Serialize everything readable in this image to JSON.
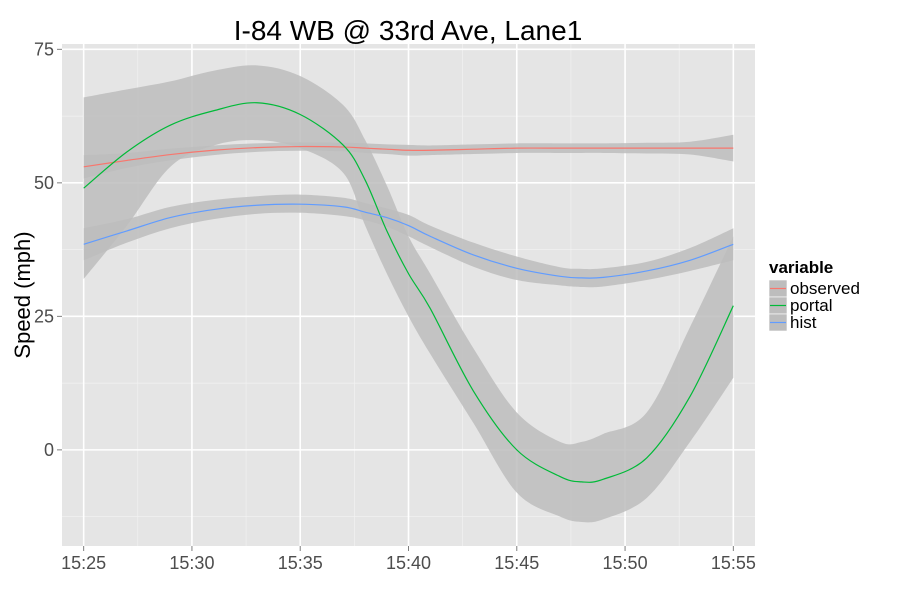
{
  "chart_data": {
    "type": "line",
    "title": "I-84 WB @ 33rd Ave, Lane1",
    "xlabel": "",
    "ylabel": "Speed (mph)",
    "x_domain": [
      "15:24",
      "15:56"
    ],
    "ylim": [
      -18,
      76
    ],
    "x_ticks": [
      "15:25",
      "15:30",
      "15:35",
      "15:40",
      "15:45",
      "15:50",
      "15:55"
    ],
    "y_ticks": [
      75,
      50,
      25,
      0
    ],
    "grid": true,
    "background": "#e5e5e5",
    "band_color": "#bdbdbd",
    "legend": {
      "title": "variable",
      "position": "right"
    },
    "x": [
      "15:25",
      "15:27",
      "15:29",
      "15:31",
      "15:33",
      "15:35",
      "15:37",
      "15:38",
      "15:39",
      "15:40",
      "15:41",
      "15:43",
      "15:45",
      "15:47",
      "15:48",
      "15:49",
      "15:51",
      "15:53",
      "15:55"
    ],
    "series": [
      {
        "name": "observed",
        "color": "#f8766d",
        "values": [
          53,
          54.2,
          55.3,
          56.1,
          56.6,
          56.8,
          56.7,
          56.5,
          56.3,
          56.1,
          56.1,
          56.3,
          56.5,
          56.5,
          56.5,
          56.5,
          56.5,
          56.5,
          56.5
        ],
        "ci_lower": [
          50.8,
          52.8,
          54.2,
          55.2,
          55.8,
          56,
          55.9,
          55.6,
          55.4,
          55.1,
          55.2,
          55.4,
          55.6,
          55.6,
          55.6,
          55.6,
          55.5,
          55.3,
          54
        ],
        "ci_upper": [
          55.2,
          55.6,
          56.4,
          57,
          57.4,
          57.6,
          57.5,
          57.4,
          57.2,
          57.1,
          57,
          57.2,
          57.4,
          57.4,
          57.4,
          57.4,
          57.5,
          57.7,
          59
        ]
      },
      {
        "name": "portal",
        "color": "#00ba38",
        "values": [
          49,
          55.8,
          60.8,
          63.5,
          65,
          62.8,
          57,
          50.5,
          41,
          33,
          26.5,
          11,
          0,
          -5,
          -6,
          -5.5,
          -1.5,
          10,
          27
        ],
        "ci_lower": [
          32,
          42,
          53,
          57,
          58,
          56.5,
          51.8,
          42,
          33,
          25,
          18,
          5,
          -8,
          -12.5,
          -13.5,
          -13,
          -9,
          1.5,
          13.5
        ],
        "ci_upper": [
          66,
          67.5,
          69,
          71,
          72,
          70,
          64.5,
          58,
          49.5,
          40,
          33,
          19,
          7,
          1.5,
          1.5,
          3,
          7,
          23,
          40
        ]
      },
      {
        "name": "hist",
        "color": "#619cff",
        "values": [
          38.5,
          41,
          43.5,
          45,
          45.8,
          46,
          45.5,
          44.5,
          43.5,
          42,
          40,
          36.5,
          34,
          32.5,
          32.2,
          32.3,
          33.5,
          35.5,
          38.5
        ],
        "ci_lower": [
          35.5,
          38.8,
          41.5,
          43.2,
          44.2,
          44.4,
          43.8,
          43,
          41.8,
          40,
          38,
          34.3,
          31.8,
          30.8,
          30.5,
          30.6,
          31.8,
          33.5,
          35.5
        ],
        "ci_upper": [
          41.5,
          43.2,
          45.5,
          46.8,
          47.5,
          47.8,
          47.2,
          46.2,
          45.2,
          44,
          42,
          38.8,
          36.2,
          34.2,
          33.9,
          34,
          35.2,
          37.8,
          41.5
        ]
      }
    ]
  }
}
